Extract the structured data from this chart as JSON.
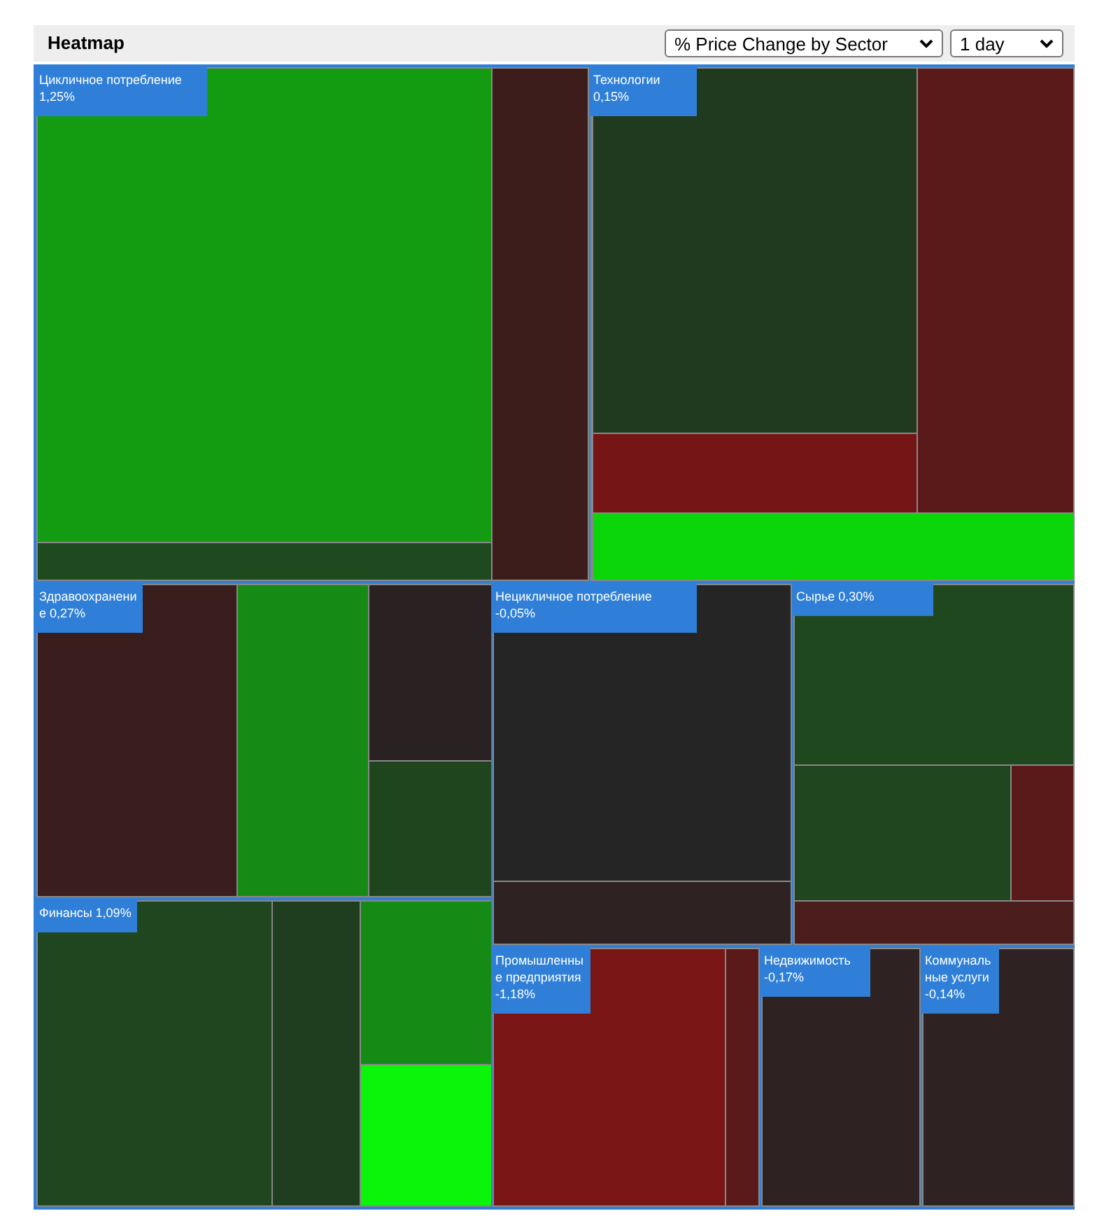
{
  "chart_data": {
    "type": "other",
    "title": "Heatmap",
    "categories": [
      "Цикличное потребление",
      "Технологии",
      "Здравоохранение",
      "Нецикличное потребление",
      "Сырье",
      "Финансы",
      "Промышленные предприятия",
      "Недвижимость",
      "Коммунальные услуги"
    ],
    "values": [
      1.25,
      0.15,
      0.27,
      -0.05,
      0.3,
      1.09,
      -1.18,
      -0.17,
      -0.14
    ],
    "value_labels": [
      "1,25%",
      "0,15%",
      "0,27%",
      "-0,05%",
      "0,30%",
      "1,09%",
      "-1,18%",
      "-0,17%",
      "-0,14%"
    ],
    "annotations": [
      "% Price Change by Sector",
      "1 day"
    ]
  }
}
